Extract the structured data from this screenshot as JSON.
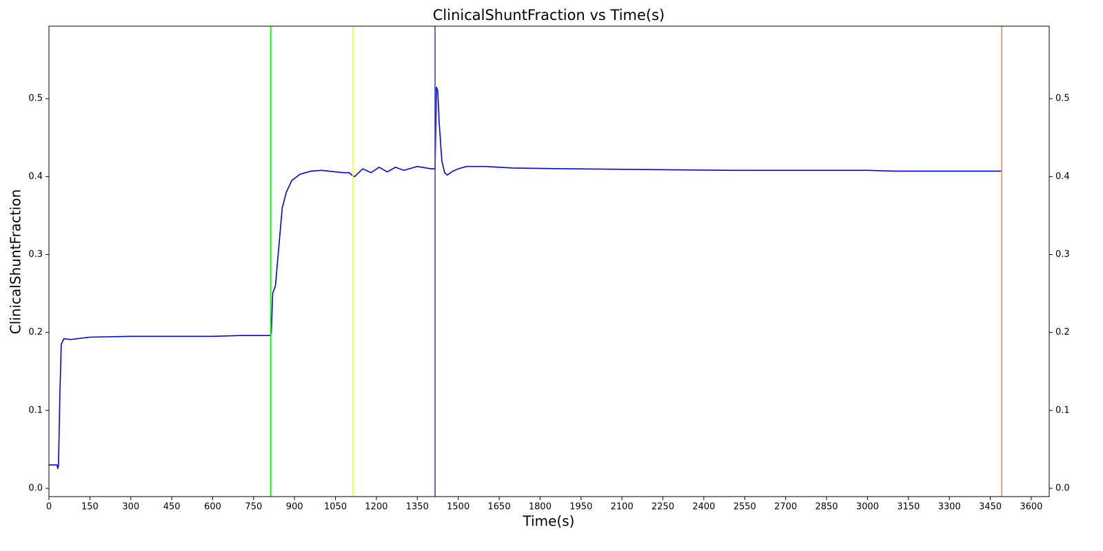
{
  "chart_data": {
    "type": "line",
    "title": "ClinicalShuntFraction vs Time(s)",
    "xlabel": "Time(s)",
    "ylabel": "ClinicalShuntFraction",
    "xlim": [
      0,
      3666
    ],
    "ylim": [
      -0.0106,
      0.593
    ],
    "xticks": [
      0,
      150,
      300,
      450,
      600,
      750,
      900,
      1050,
      1200,
      1350,
      1500,
      1650,
      1800,
      1950,
      2100,
      2250,
      2400,
      2550,
      2700,
      2850,
      3000,
      3150,
      3300,
      3450,
      3600
    ],
    "yticks": [
      {
        "value": 0,
        "label": "0.0"
      },
      0.1,
      0.2,
      0.3,
      0.4,
      0.5
    ],
    "vlines": [
      {
        "x": 813,
        "color": "#00ff00"
      },
      {
        "x": 1114,
        "color": "#ffff00"
      },
      {
        "x": 1415,
        "color": "#4040d0"
      },
      {
        "x": 3492,
        "color": "#ff8c40"
      }
    ],
    "series": [
      {
        "color": "#0000ee",
        "x": [
          0,
          30,
          32,
          35,
          40,
          45,
          55,
          80,
          150,
          300,
          600,
          700,
          813,
          815,
          820,
          830,
          840,
          855,
          870,
          890,
          920,
          960,
          1000,
          1050,
          1080,
          1100,
          1110,
          1120,
          1150,
          1180,
          1210,
          1240,
          1270,
          1300,
          1350,
          1400,
          1415,
          1420,
          1425,
          1430,
          1440,
          1450,
          1460,
          1480,
          1500,
          1530,
          1600,
          1700,
          1900,
          2200,
          2500,
          3000,
          3100,
          3492
        ],
        "values": [
          0.03,
          0.03,
          0.025,
          0.03,
          0.12,
          0.185,
          0.192,
          0.191,
          0.194,
          0.195,
          0.195,
          0.196,
          0.196,
          0.2,
          0.25,
          0.26,
          0.3,
          0.36,
          0.38,
          0.395,
          0.403,
          0.407,
          0.408,
          0.406,
          0.405,
          0.405,
          0.402,
          0.4,
          0.41,
          0.405,
          0.412,
          0.406,
          0.412,
          0.408,
          0.413,
          0.41,
          0.41,
          0.515,
          0.51,
          0.47,
          0.42,
          0.405,
          0.402,
          0.407,
          0.41,
          0.413,
          0.413,
          0.411,
          0.41,
          0.409,
          0.408,
          0.408,
          0.407,
          0.407
        ]
      }
    ]
  }
}
